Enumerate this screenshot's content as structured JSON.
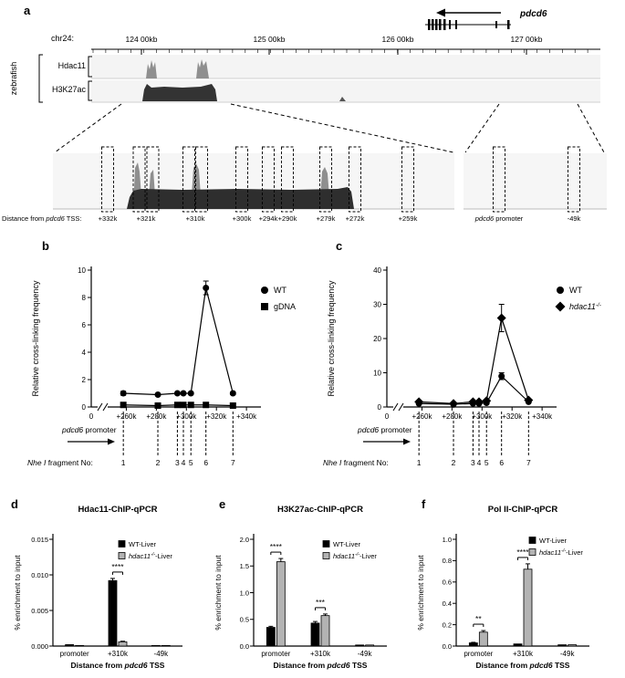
{
  "panel_a": {
    "label": "a",
    "gene_name": "pdcd6",
    "chrom": "chr24:",
    "coord_ticks": [
      "124 00kb",
      "125 00kb",
      "126 00kb",
      "127 00kb"
    ],
    "species": "zebrafish",
    "tracks": [
      "Hdac11",
      "H3K27ac"
    ],
    "distance_caption_parts": [
      {
        "t": "Distance from "
      },
      {
        "t": "pdcd6",
        "i": 1
      },
      {
        "t": " TSS:"
      }
    ],
    "distance_labels": [
      "+332k",
      "+321k",
      "+310k",
      "+300k",
      "+294k",
      "+290k",
      "+279k",
      "+272k",
      "+259k"
    ],
    "promoter_label_parts": [
      {
        "t": "pdcd6",
        "i": 1
      },
      {
        "t": " promoter"
      }
    ],
    "neg_label": "-49k"
  },
  "panel_labels": {
    "b": "b",
    "c": "c",
    "d": "d",
    "e": "e",
    "f": "f"
  },
  "chart_data": [
    {
      "id": "b",
      "type": "line",
      "title": "",
      "ylabel": "Relative cross-linking frequency",
      "ylim": [
        0,
        10
      ],
      "yticks": [
        0,
        2,
        4,
        6,
        8,
        10
      ],
      "x_break": true,
      "origin_label": "0",
      "x_ticks": [
        {
          "value": 260,
          "label": "+260k"
        },
        {
          "value": 280,
          "label": "+280k"
        },
        {
          "value": 300,
          "label": "+300k"
        },
        {
          "value": 320,
          "label": "+320k"
        },
        {
          "value": 340,
          "label": "+340k"
        }
      ],
      "x_start_annotation": [
        {
          "t": "pdcd6",
          "i": 1
        },
        {
          "t": " promoter"
        }
      ],
      "fragment_caption": [
        {
          "t": "Nhe",
          "i": 1
        },
        {
          "t": " I",
          "i": 1
        },
        {
          "t": " fragment No:"
        }
      ],
      "fragments": [
        {
          "no": "1",
          "x": 258
        },
        {
          "no": "2",
          "x": 281
        },
        {
          "no": "3",
          "x": 294
        },
        {
          "no": "4",
          "x": 298
        },
        {
          "no": "5",
          "x": 303
        },
        {
          "no": "6",
          "x": 313
        },
        {
          "no": "7",
          "x": 331
        }
      ],
      "series": [
        {
          "name": [
            {
              "t": "WT"
            }
          ],
          "marker": "circle",
          "values": [
            1.0,
            0.9,
            1.0,
            1.0,
            1.0,
            8.7,
            1.0
          ],
          "errors": [
            0.15,
            0,
            0,
            0,
            0,
            0.5,
            0.1
          ]
        },
        {
          "name": [
            {
              "t": "gDNA"
            }
          ],
          "marker": "square",
          "values": [
            0.15,
            0.1,
            0.15,
            0.15,
            0.15,
            0.15,
            0.1
          ],
          "errors": [
            0,
            0,
            0,
            0,
            0,
            0,
            0
          ]
        }
      ]
    },
    {
      "id": "c",
      "type": "line",
      "title": "",
      "ylabel": "Relative cross-linking frequency",
      "ylim": [
        0,
        40
      ],
      "yticks": [
        0,
        10,
        20,
        30,
        40
      ],
      "x_break": true,
      "origin_label": "0",
      "x_ticks": [
        {
          "value": 260,
          "label": "+260k"
        },
        {
          "value": 280,
          "label": "+280k"
        },
        {
          "value": 300,
          "label": "+300k"
        },
        {
          "value": 320,
          "label": "+320k"
        },
        {
          "value": 340,
          "label": "+340k"
        }
      ],
      "x_start_annotation": [
        {
          "t": "pdcd6",
          "i": 1
        },
        {
          "t": " promoter"
        }
      ],
      "fragment_caption": [
        {
          "t": "Nhe",
          "i": 1
        },
        {
          "t": " I",
          "i": 1
        },
        {
          "t": " fragment No:"
        }
      ],
      "fragments": [
        {
          "no": "1",
          "x": 258
        },
        {
          "no": "2",
          "x": 281
        },
        {
          "no": "3",
          "x": 294
        },
        {
          "no": "4",
          "x": 298
        },
        {
          "no": "5",
          "x": 303
        },
        {
          "no": "6",
          "x": 313
        },
        {
          "no": "7",
          "x": 331
        }
      ],
      "series": [
        {
          "name": [
            {
              "t": "WT"
            }
          ],
          "marker": "circle",
          "values": [
            1.0,
            0.8,
            1.0,
            1.0,
            1.2,
            9.0,
            1.5
          ],
          "errors": [
            0,
            0,
            0,
            0,
            0,
            1,
            0.2
          ]
        },
        {
          "name": [
            {
              "t": "hdac11",
              "i": 1
            },
            {
              "t": "-/-",
              "i": 1,
              "sup": true
            }
          ],
          "marker": "diamond",
          "values": [
            1.5,
            1.0,
            1.5,
            1.5,
            1.8,
            26.0,
            2.0
          ],
          "errors": [
            0.3,
            0,
            0,
            0,
            0,
            4,
            0.3
          ]
        }
      ]
    },
    {
      "id": "d",
      "type": "bar",
      "title": "Hdac11-ChIP-qPCR",
      "ylabel": "% enrichment to input",
      "xlabel_parts": [
        {
          "t": "Distance from "
        },
        {
          "t": "pdcd6",
          "i": 1
        },
        {
          "t": " TSS"
        }
      ],
      "categories": [
        "promoter",
        "+310k",
        "-49k"
      ],
      "ylim": [
        0,
        0.015
      ],
      "yticks": [
        {
          "v": 0,
          "label": "0.000"
        },
        {
          "v": 0.005,
          "label": "0.005"
        },
        {
          "v": 0.01,
          "label": "0.010"
        },
        {
          "v": 0.015,
          "label": "0.015"
        }
      ],
      "series": [
        {
          "name": [
            {
              "t": "WT-Liver"
            }
          ],
          "color": "#000000",
          "values": [
            0.0002,
            0.0092,
            8e-05
          ],
          "errors": [
            0,
            0.0003,
            0
          ]
        },
        {
          "name": [
            {
              "t": "hdac11",
              "i": 1
            },
            {
              "t": "-/-",
              "i": 1,
              "sup": true
            },
            {
              "t": "-Liver"
            }
          ],
          "color": "#b3b3b3",
          "values": [
            8e-05,
            0.0006,
            8e-05
          ],
          "errors": [
            0,
            8e-05,
            0
          ]
        }
      ],
      "significance": [
        {
          "category_index": 1,
          "label": "****"
        }
      ]
    },
    {
      "id": "e",
      "type": "bar",
      "title": "H3K27ac-ChIP-qPCR",
      "ylabel": "% enrichment to input",
      "xlabel_parts": [
        {
          "t": "Distance from "
        },
        {
          "t": "pdcd6",
          "i": 1
        },
        {
          "t": " TSS"
        }
      ],
      "categories": [
        "promoter",
        "+310k",
        "-49k"
      ],
      "ylim": [
        0,
        2.0
      ],
      "yticks": [
        {
          "v": 0,
          "label": "0.0"
        },
        {
          "v": 0.5,
          "label": "0.5"
        },
        {
          "v": 1.0,
          "label": "1.0"
        },
        {
          "v": 1.5,
          "label": "1.5"
        },
        {
          "v": 2.0,
          "label": "2.0"
        }
      ],
      "series": [
        {
          "name": [
            {
              "t": "WT-Liver"
            }
          ],
          "color": "#000000",
          "values": [
            0.35,
            0.43,
            0.02
          ],
          "errors": [
            0.02,
            0.03,
            0
          ]
        },
        {
          "name": [
            {
              "t": "hdac11",
              "i": 1
            },
            {
              "t": "-/-",
              "i": 1,
              "sup": true
            },
            {
              "t": "-Liver"
            }
          ],
          "color": "#b3b3b3",
          "values": [
            1.58,
            0.57,
            0.02
          ],
          "errors": [
            0.06,
            0.03,
            0
          ]
        }
      ],
      "significance": [
        {
          "category_index": 0,
          "label": "****"
        },
        {
          "category_index": 1,
          "label": "***"
        }
      ]
    },
    {
      "id": "f",
      "type": "bar",
      "title": "Pol II-ChIP-qPCR",
      "ylabel": "% enrichment to input",
      "xlabel_parts": [
        {
          "t": "Distance from "
        },
        {
          "t": "pdcd6",
          "i": 1
        },
        {
          "t": " TSS"
        }
      ],
      "categories": [
        "promoter",
        "+310k",
        "-49k"
      ],
      "ylim": [
        0,
        1.0
      ],
      "yticks": [
        {
          "v": 0,
          "label": "0.0"
        },
        {
          "v": 0.2,
          "label": "0.2"
        },
        {
          "v": 0.4,
          "label": "0.4"
        },
        {
          "v": 0.6,
          "label": "0.6"
        },
        {
          "v": 0.8,
          "label": "0.8"
        },
        {
          "v": 1.0,
          "label": "1.0"
        }
      ],
      "series": [
        {
          "name": [
            {
              "t": "WT-Liver"
            }
          ],
          "color": "#000000",
          "values": [
            0.03,
            0.02,
            0.012
          ],
          "errors": [
            0.005,
            0,
            0
          ]
        },
        {
          "name": [
            {
              "t": "hdac11",
              "i": 1
            },
            {
              "t": "-/-",
              "i": 1,
              "sup": true
            },
            {
              "t": "-Liver"
            }
          ],
          "color": "#b3b3b3",
          "values": [
            0.13,
            0.72,
            0.012
          ],
          "errors": [
            0.015,
            0.05,
            0
          ]
        }
      ],
      "significance": [
        {
          "category_index": 0,
          "label": "**"
        },
        {
          "category_index": 1,
          "label": "****"
        }
      ]
    }
  ]
}
